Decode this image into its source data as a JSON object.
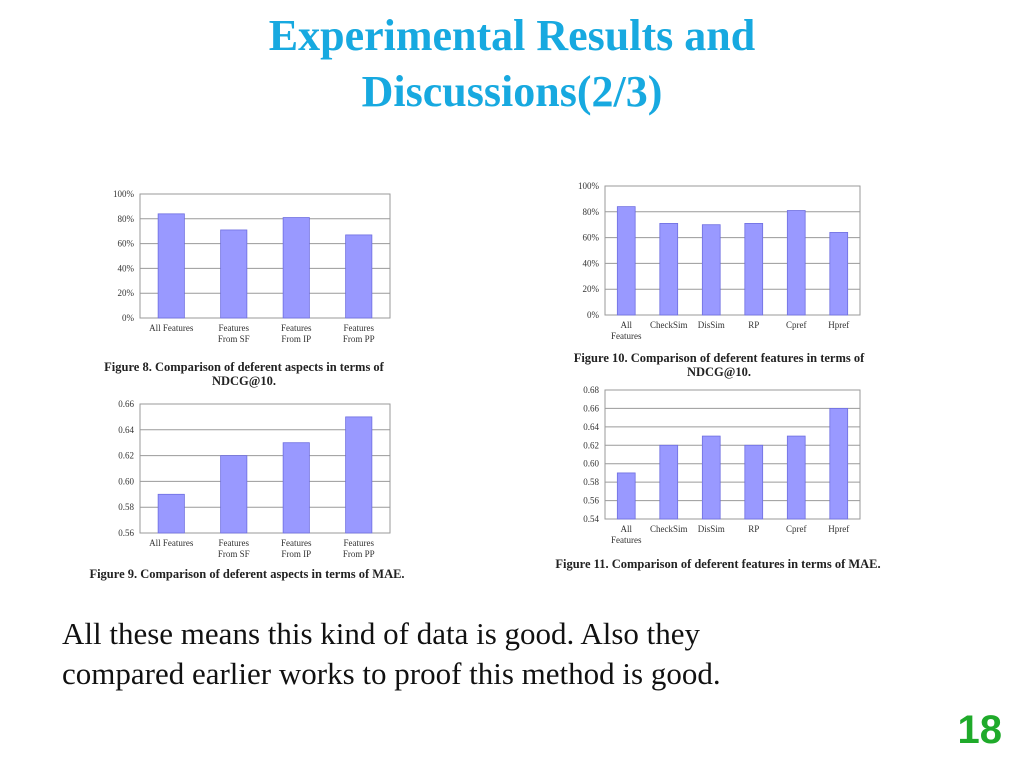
{
  "slide": {
    "title_line1": "Experimental Results and",
    "title_line2": "Discussions(2/3)",
    "body_line1": "All these means this kind of data is good. Also they",
    "body_line2": "compared earlier works to proof this method is good.",
    "page_number": "18",
    "title_color": "#17a9e0",
    "page_number_color": "#1faa2a"
  },
  "chart_data": [
    {
      "id": "fig8",
      "type": "bar",
      "caption_line1": "Figure 8. Comparison of deferent aspects in terms of",
      "caption_line2": "NDCG@10.",
      "categories": [
        "All Features",
        "Features\nFrom SF",
        "Features\nFrom IP",
        "Features\nFrom PP"
      ],
      "values": [
        84,
        71,
        81,
        67
      ],
      "ylim": [
        0,
        100
      ],
      "yticks": [
        0,
        20,
        40,
        60,
        80,
        100
      ],
      "tick_format": "percent",
      "grid": true,
      "bar_color": "#9999ff"
    },
    {
      "id": "fig9",
      "type": "bar",
      "caption_line1": "Figure 9. Comparison of deferent aspects in terms of MAE.",
      "caption_line2": "",
      "categories": [
        "All Features",
        "Features\nFrom SF",
        "Features\nFrom IP",
        "Features\nFrom PP"
      ],
      "values": [
        0.59,
        0.62,
        0.63,
        0.65
      ],
      "ylim": [
        0.56,
        0.66
      ],
      "yticks": [
        0.56,
        0.58,
        0.6,
        0.62,
        0.64,
        0.66
      ],
      "tick_format": "decimal2",
      "grid": true,
      "bar_color": "#9999ff"
    },
    {
      "id": "fig10",
      "type": "bar",
      "caption_line1": "Figure 10. Comparison of deferent features in terms of",
      "caption_line2": "NDCG@10.",
      "categories": [
        "All\nFeatures",
        "CheckSim",
        "DisSim",
        "RP",
        "Cpref",
        "Hpref"
      ],
      "values": [
        84,
        71,
        70,
        71,
        81,
        64
      ],
      "ylim": [
        0,
        100
      ],
      "yticks": [
        0,
        20,
        40,
        60,
        80,
        100
      ],
      "tick_format": "percent",
      "grid": true,
      "bar_color": "#9999ff"
    },
    {
      "id": "fig11",
      "type": "bar",
      "caption_line1": "Figure 11. Comparison of deferent features in terms of MAE.",
      "caption_line2": "",
      "categories": [
        "All\nFeatures",
        "CheckSim",
        "DisSim",
        "RP",
        "Cpref",
        "Hpref"
      ],
      "values": [
        0.59,
        0.62,
        0.63,
        0.62,
        0.63,
        0.66
      ],
      "ylim": [
        0.54,
        0.68
      ],
      "yticks": [
        0.54,
        0.56,
        0.58,
        0.6,
        0.62,
        0.64,
        0.66,
        0.68
      ],
      "tick_format": "decimal2",
      "grid": true,
      "bar_color": "#9999ff"
    }
  ]
}
